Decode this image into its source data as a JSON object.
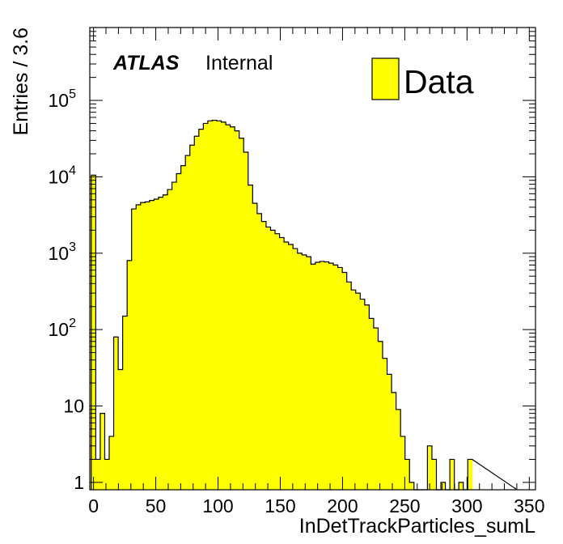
{
  "chart_data": {
    "type": "bar",
    "style": "histogram",
    "xlabel": "InDetTrackParticles_sumL",
    "ylabel": "Entries / 3.6",
    "title": "",
    "bin_width": 3.6,
    "xlim": [
      -3,
      355
    ],
    "ylim": [
      0.8,
      900000
    ],
    "log_y": true,
    "grid": false,
    "legend": "top-right",
    "fill_color": "#ffff00",
    "line_color": "#000000",
    "x_ticks": [
      "0",
      "50",
      "100",
      "150",
      "200",
      "250",
      "300",
      "350"
    ],
    "y_ticks": [
      {
        "base": "1",
        "exp": ""
      },
      {
        "base": "10",
        "exp": ""
      },
      {
        "base": "10",
        "exp": "2"
      },
      {
        "base": "10",
        "exp": "3"
      },
      {
        "base": "10",
        "exp": "4"
      },
      {
        "base": "10",
        "exp": "5"
      }
    ],
    "series": [
      {
        "name": "Data",
        "bin_low_edges": [
          -1.8,
          1.8,
          5.4,
          9.0,
          12.6,
          16.2,
          19.8,
          23.4,
          27.0,
          30.6,
          34.2,
          37.8,
          41.4,
          45.0,
          48.6,
          52.2,
          55.8,
          59.4,
          63.0,
          66.6,
          70.2,
          73.8,
          77.4,
          81.0,
          84.6,
          88.2,
          91.8,
          95.4,
          99.0,
          102.6,
          106.2,
          109.8,
          113.4,
          117.0,
          120.6,
          124.2,
          127.8,
          131.4,
          135.0,
          138.6,
          142.2,
          145.8,
          149.4,
          153.0,
          156.6,
          160.2,
          163.8,
          167.4,
          171.0,
          174.6,
          178.2,
          181.8,
          185.4,
          189.0,
          192.6,
          196.2,
          199.8,
          203.4,
          207.0,
          210.6,
          214.2,
          217.8,
          221.4,
          225.0,
          228.6,
          232.2,
          235.8,
          239.4,
          243.0,
          246.6,
          250.2,
          253.8,
          257.4,
          261.0,
          264.6,
          268.2,
          271.8,
          275.4,
          279.0,
          282.6,
          286.2,
          289.8,
          293.4,
          297.0,
          300.6,
          304.2,
          307.8,
          311.4,
          315.0,
          318.6,
          322.2,
          325.8,
          329.4,
          333.0,
          336.6
        ],
        "values": [
          10500,
          2,
          8,
          2,
          4,
          80,
          30,
          150,
          800,
          3800,
          4300,
          4600,
          4700,
          4900,
          5100,
          5400,
          5800,
          6800,
          8500,
          11000,
          14000,
          19000,
          26000,
          34000,
          42000,
          50000,
          54000,
          55000,
          54000,
          52000,
          48000,
          45000,
          40000,
          32000,
          21000,
          7800,
          4500,
          3300,
          2600,
          2200,
          2000,
          1800,
          1600,
          1400,
          1300,
          1150,
          1000,
          950,
          900,
          720,
          760,
          780,
          770,
          740,
          700,
          650,
          560,
          420,
          330,
          300,
          250,
          210,
          140,
          105,
          70,
          42,
          26,
          15,
          9,
          4,
          2,
          1,
          0,
          0,
          0,
          3,
          2,
          0,
          1,
          0,
          2,
          0,
          1,
          0,
          2
        ]
      }
    ]
  },
  "annotations": {
    "atlas": "ATLAS",
    "status": "Internal"
  },
  "legend": {
    "label": "Data"
  }
}
